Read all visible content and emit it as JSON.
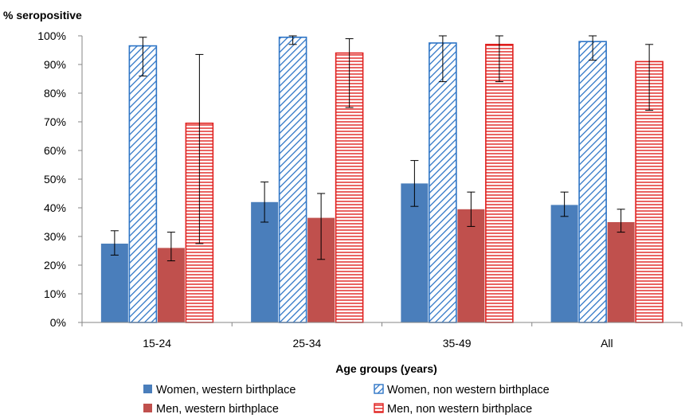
{
  "chart_data": {
    "type": "bar",
    "title": "",
    "ylabel": "% seropositive",
    "xlabel": "Age groups (years)",
    "ylim": [
      0,
      100
    ],
    "yticks": [
      "0%",
      "10%",
      "20%",
      "30%",
      "40%",
      "50%",
      "60%",
      "70%",
      "80%",
      "90%",
      "100%"
    ],
    "categories": [
      "15-24",
      "25-34",
      "35-49",
      "All"
    ],
    "series": [
      {
        "name": "Women, western birthplace",
        "color": "#4a7ebb",
        "fill": "solid",
        "values": [
          27.5,
          42,
          48.5,
          41
        ],
        "error_low": [
          23.5,
          35,
          40.5,
          37
        ],
        "error_high": [
          32,
          49,
          56.5,
          45.5
        ]
      },
      {
        "name": "Women, non western birthplace",
        "color": "#2e75c6",
        "fill": "diagonal-hatch",
        "values": [
          96.5,
          99.5,
          97.5,
          98
        ],
        "error_low": [
          86,
          97,
          84,
          91.5
        ],
        "error_high": [
          99.5,
          100,
          100,
          100
        ]
      },
      {
        "name": "Men, western birthplace",
        "color": "#c0504d",
        "fill": "solid",
        "values": [
          26,
          36.5,
          39.5,
          35
        ],
        "error_low": [
          21.5,
          22,
          33.5,
          31.5
        ],
        "error_high": [
          31.5,
          45,
          45.5,
          39.5
        ]
      },
      {
        "name": "Men, non western birthplace",
        "color": "#e0211f",
        "fill": "horizontal-hatch",
        "values": [
          69.5,
          94,
          97,
          91
        ],
        "error_low": [
          27.5,
          75,
          84,
          74
        ],
        "error_high": [
          93.5,
          99,
          100,
          97
        ]
      }
    ],
    "legend_position": "bottom",
    "grid": false
  }
}
